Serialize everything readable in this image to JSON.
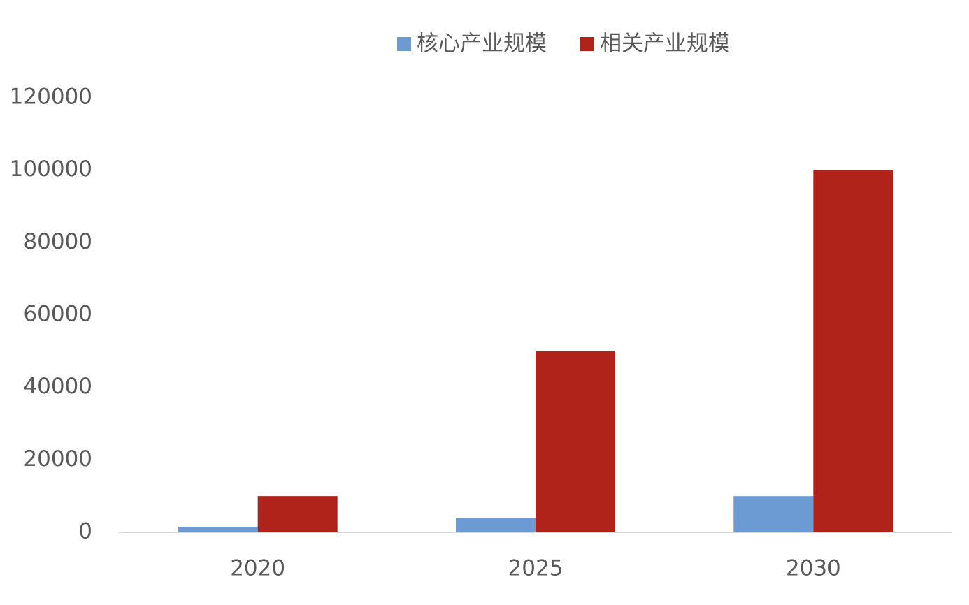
{
  "chart_data": {
    "type": "bar",
    "categories": [
      "2020",
      "2025",
      "2030"
    ],
    "series": [
      {
        "name": "核心产业规模",
        "color": "#6b9bd2",
        "values": [
          1500,
          4000,
          10000
        ]
      },
      {
        "name": "相关产业规模",
        "color": "#b0231a",
        "values": [
          10000,
          50000,
          100000
        ]
      }
    ],
    "ylim": [
      0,
      120000
    ],
    "yticks": [
      0,
      20000,
      40000,
      60000,
      80000,
      100000,
      120000
    ],
    "grid": false,
    "legend": "top"
  }
}
